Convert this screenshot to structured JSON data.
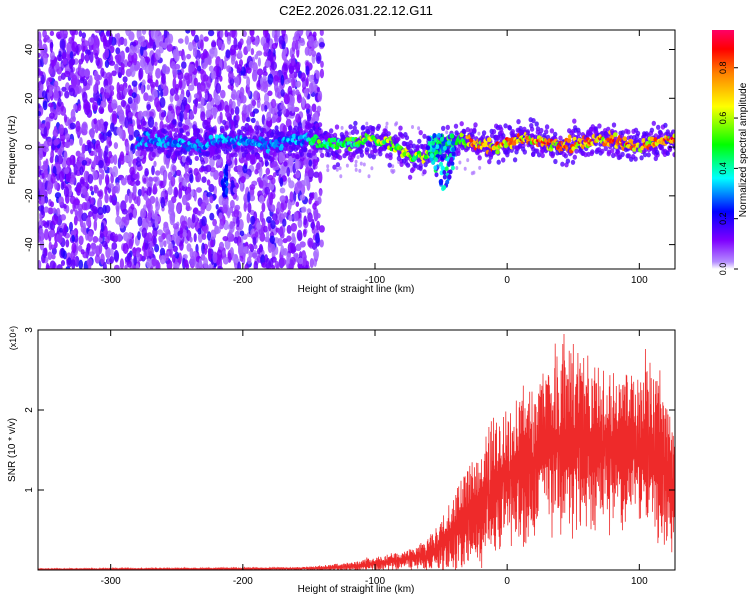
{
  "title": "C2E2.2026.031.22.12.G11",
  "chart_data": [
    {
      "type": "heatmap",
      "title": "C2E2.2026.031.22.12.G11",
      "xlabel": "Height of straight line (km)",
      "ylabel": "Frequency (Hz)",
      "xlim": [
        -355,
        127
      ],
      "ylim": [
        -50,
        48
      ],
      "xticks": [
        -300,
        -200,
        -100,
        0,
        100
      ],
      "yticks": [
        -40,
        -20,
        0,
        20,
        40
      ],
      "xtick_labels": [
        "-300",
        "-200",
        "-100",
        "0",
        "100"
      ],
      "ytick_labels": [
        "-40",
        "-20",
        "0",
        "20",
        "40"
      ],
      "colorbar": {
        "label": "Normalized spectral amplitude",
        "range": [
          0,
          0.95
        ],
        "ticks": [
          0.0,
          0.2,
          0.4,
          0.6,
          0.8
        ],
        "tick_labels": [
          "0.0",
          "0.2",
          "0.4",
          "0.6",
          "0.8"
        ],
        "colormap": [
          "#ffffff",
          "#7f00ff",
          "#0000ff",
          "#00ffff",
          "#00ff00",
          "#ffff00",
          "#ff7f00",
          "#ff0000",
          "#ff0066"
        ]
      },
      "features": {
        "noise_region_x": [
          -355,
          -140
        ],
        "signal_band_center_hz": 2,
        "signal_band_x": [
          -280,
          127
        ],
        "dip_x": [
          -60,
          -40
        ],
        "dip_min_hz": -18
      }
    },
    {
      "type": "line",
      "xlabel": "Height of straight line (km)",
      "ylabel": "SNR (10 * v/v)",
      "y_multiplier": "(x10⁴)",
      "xlim": [
        -355,
        127
      ],
      "ylim": [
        0,
        3
      ],
      "xticks": [
        -300,
        -200,
        -100,
        0,
        100
      ],
      "yticks": [
        1,
        2,
        3
      ],
      "xtick_labels": [
        "-300",
        "-200",
        "-100",
        "0",
        "100"
      ],
      "ytick_labels": [
        "1",
        "2",
        "3"
      ],
      "series": [
        {
          "name": "SNR",
          "color": "#ee2a2a",
          "envelope_x": [
            -355,
            -300,
            -200,
            -150,
            -120,
            -100,
            -90,
            -80,
            -70,
            -60,
            -50,
            -40,
            -30,
            -20,
            -10,
            0,
            10,
            20,
            30,
            40,
            50,
            60,
            70,
            80,
            90,
            100,
            110,
            120,
            127
          ],
          "envelope_mean": [
            0.01,
            0.01,
            0.015,
            0.02,
            0.04,
            0.08,
            0.1,
            0.12,
            0.15,
            0.2,
            0.3,
            0.5,
            0.7,
            0.85,
            1.0,
            1.15,
            1.3,
            1.4,
            1.55,
            1.6,
            1.65,
            1.6,
            1.55,
            1.5,
            1.5,
            1.5,
            1.5,
            1.3,
            1.0
          ],
          "envelope_amplitude": [
            0.005,
            0.008,
            0.01,
            0.02,
            0.05,
            0.08,
            0.1,
            0.1,
            0.12,
            0.2,
            0.3,
            0.45,
            0.55,
            0.7,
            0.75,
            0.85,
            0.9,
            0.95,
            1.0,
            1.1,
            1.05,
            1.0,
            0.95,
            0.9,
            0.9,
            0.95,
            0.95,
            1.0,
            0.9
          ],
          "peak": {
            "x": 43,
            "y": 2.95
          }
        }
      ]
    }
  ]
}
